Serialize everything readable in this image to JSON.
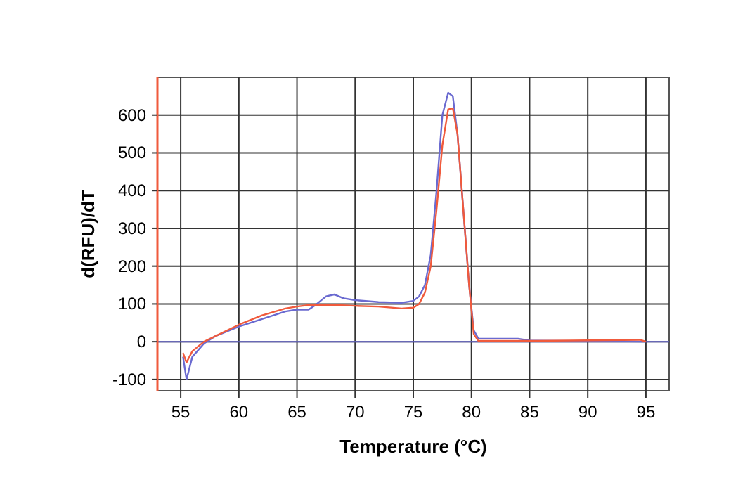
{
  "chart_data": {
    "type": "line",
    "xlabel": "Temperature (°C)",
    "ylabel": "d(RFU)/dT",
    "xlim": [
      53,
      97
    ],
    "ylim": [
      -130,
      700
    ],
    "xticks": [
      55,
      60,
      65,
      70,
      75,
      80,
      85,
      90,
      95
    ],
    "yticks": [
      -100,
      0,
      100,
      200,
      300,
      400,
      500,
      600
    ],
    "grid": true,
    "line_style": "solid",
    "ref_lines": [
      {
        "axis": "y",
        "value": 0,
        "color": "#6a6ad0"
      }
    ],
    "series": [
      {
        "color": "#6a6ad0",
        "x": [
          55.2,
          55.5,
          56,
          57,
          58,
          60,
          62,
          64,
          65,
          66,
          66.5,
          67.5,
          68.2,
          69,
          70,
          72,
          74,
          75,
          75.5,
          76,
          76.5,
          77,
          77.5,
          78,
          78.4,
          78.8,
          79.3,
          79.8,
          80.2,
          80.6,
          84,
          85,
          95
        ],
        "values": [
          -40,
          -100,
          -40,
          -5,
          15,
          40,
          60,
          80,
          85,
          85,
          95,
          120,
          125,
          115,
          110,
          105,
          103,
          108,
          120,
          150,
          230,
          400,
          600,
          659,
          650,
          550,
          350,
          150,
          30,
          8,
          8,
          3,
          0
        ]
      },
      {
        "color": "#f05a3c",
        "x": [
          55.2,
          55.5,
          56,
          57,
          58,
          60,
          62,
          64,
          65,
          66,
          68,
          70,
          72,
          74,
          75,
          75.5,
          76,
          76.5,
          77,
          77.5,
          78,
          78.4,
          78.8,
          79.3,
          79.8,
          80.2,
          80.6,
          85,
          94.5,
          95
        ],
        "values": [
          -30,
          -55,
          -25,
          0,
          15,
          45,
          70,
          88,
          93,
          97,
          98,
          95,
          93,
          88,
          90,
          100,
          130,
          200,
          350,
          520,
          615,
          618,
          550,
          350,
          150,
          20,
          2,
          2,
          5,
          0
        ]
      }
    ]
  }
}
